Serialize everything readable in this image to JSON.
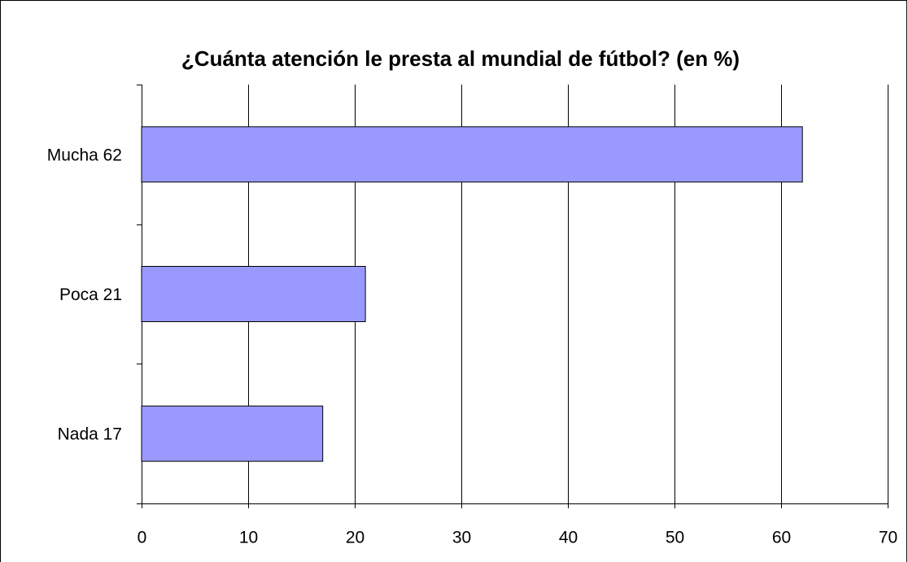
{
  "chart_data": {
    "type": "bar",
    "orientation": "horizontal",
    "title": "¿Cuánta atención le presta al mundial de fútbol? (en %)",
    "categories": [
      "Mucha  62",
      "Poca  21",
      "Nada 17"
    ],
    "values": [
      62,
      21,
      17
    ],
    "color": "#9999ff",
    "xlim": [
      0,
      70
    ],
    "xticks": [
      0,
      10,
      20,
      30,
      40,
      50,
      60,
      70
    ],
    "grid": true
  }
}
